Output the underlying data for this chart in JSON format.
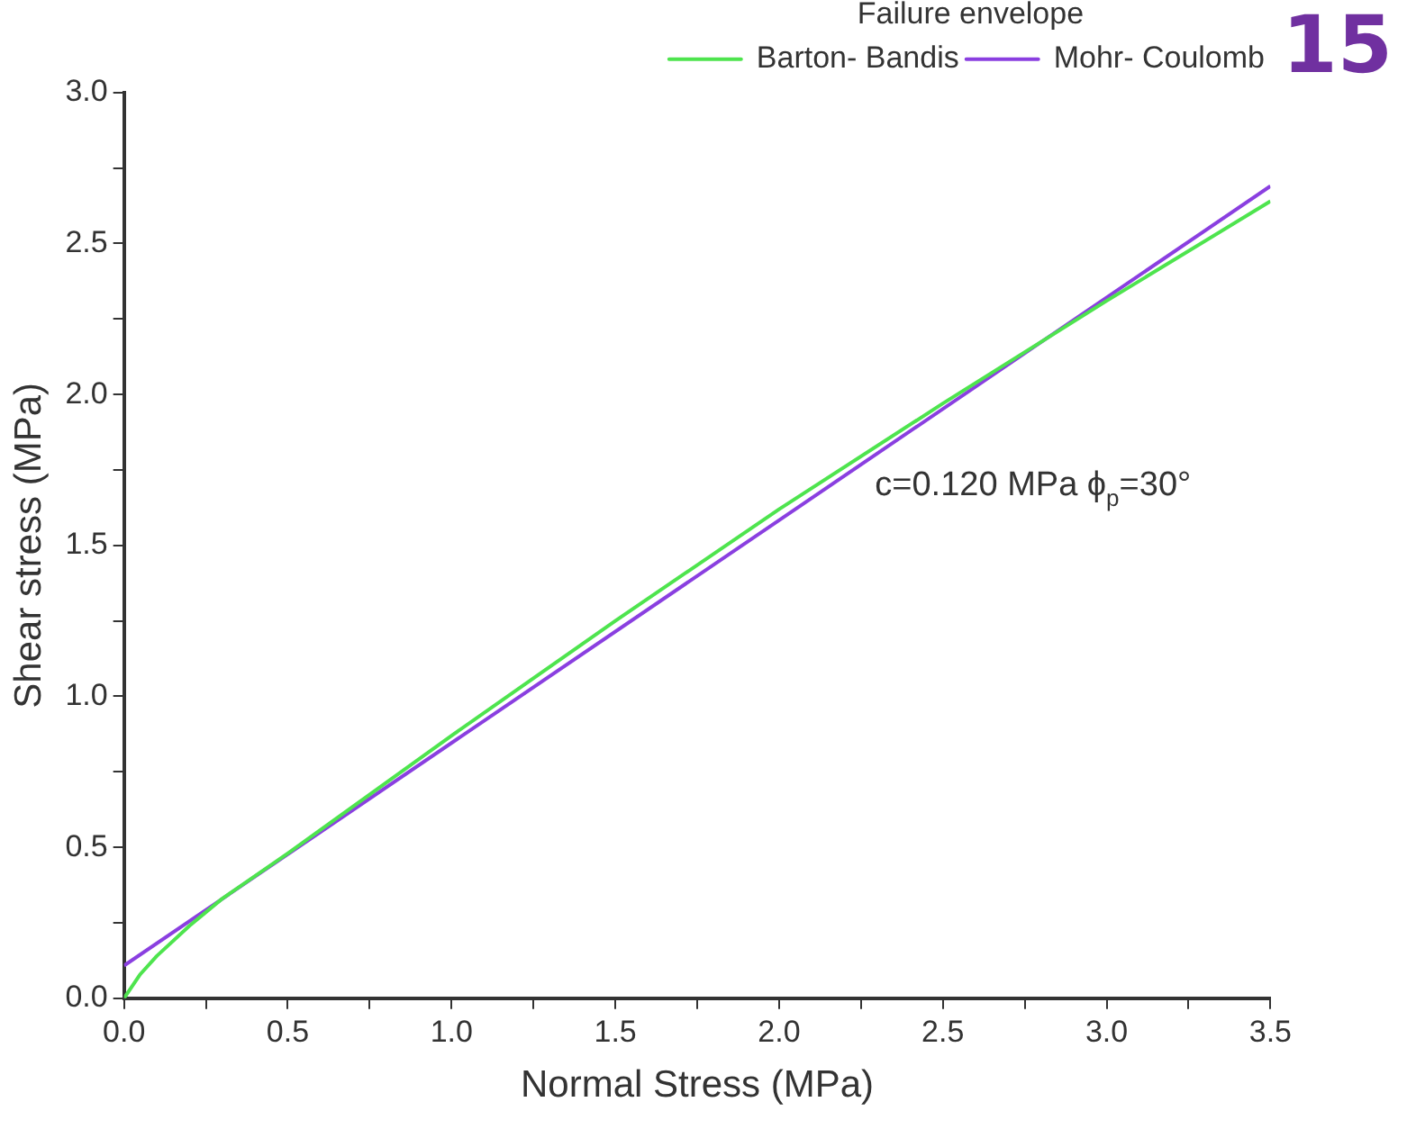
{
  "chart_data": {
    "type": "line",
    "xlabel": "Normal Stress (MPa)",
    "ylabel": "Shear stress (MPa)",
    "legend_title": "Failure envelope",
    "x": [
      0,
      0.05,
      0.1,
      0.2,
      0.3,
      0.5,
      1.0,
      1.5,
      2.0,
      2.5,
      3.0,
      3.5
    ],
    "series": [
      {
        "name": "Barton- Bandis",
        "color": "#4ee44e",
        "values": [
          0,
          0.08,
          0.14,
          0.24,
          0.33,
          0.48,
          0.87,
          1.25,
          1.62,
          1.97,
          2.31,
          2.64
        ]
      },
      {
        "name": "Mohr- Coulomb",
        "color": "#8a3fe0",
        "x": [
          0,
          3.5
        ],
        "values": [
          0.108,
          2.69
        ]
      }
    ],
    "xlim": [
      0,
      3.5
    ],
    "ylim": [
      0,
      3.0
    ],
    "xticks": [
      {
        "value": 0,
        "label": "0.0"
      },
      {
        "value": 0.25,
        "label": null
      },
      0.5,
      {
        "value": 0.75,
        "label": null
      },
      {
        "value": 1,
        "label": "1.0"
      },
      {
        "value": 1.25,
        "label": null
      },
      1.5,
      {
        "value": 1.75,
        "label": null
      },
      {
        "value": 2,
        "label": "2.0"
      },
      {
        "value": 2.25,
        "label": null
      },
      2.5,
      {
        "value": 2.75,
        "label": null
      },
      {
        "value": 3,
        "label": "3.0"
      },
      {
        "value": 3.25,
        "label": null
      },
      3.5
    ],
    "yticks": [
      {
        "value": 0,
        "label": "0.0"
      },
      {
        "value": 0.25,
        "label": null
      },
      0.5,
      {
        "value": 0.75,
        "label": null
      },
      {
        "value": 1,
        "label": "1.0"
      },
      {
        "value": 1.25,
        "label": null
      },
      1.5,
      {
        "value": 1.75,
        "label": null
      },
      {
        "value": 2,
        "label": "2.0"
      },
      {
        "value": 2.25,
        "label": null
      },
      2.5,
      {
        "value": 2.75,
        "label": null
      },
      {
        "value": 3,
        "label": "3.0"
      }
    ],
    "annotations": [
      "c=0.120 MPa ϕ$_{p}$=30°",
      "15"
    ],
    "grid": false,
    "legend": "top right",
    "marker": "none",
    "line_style": "solid"
  }
}
